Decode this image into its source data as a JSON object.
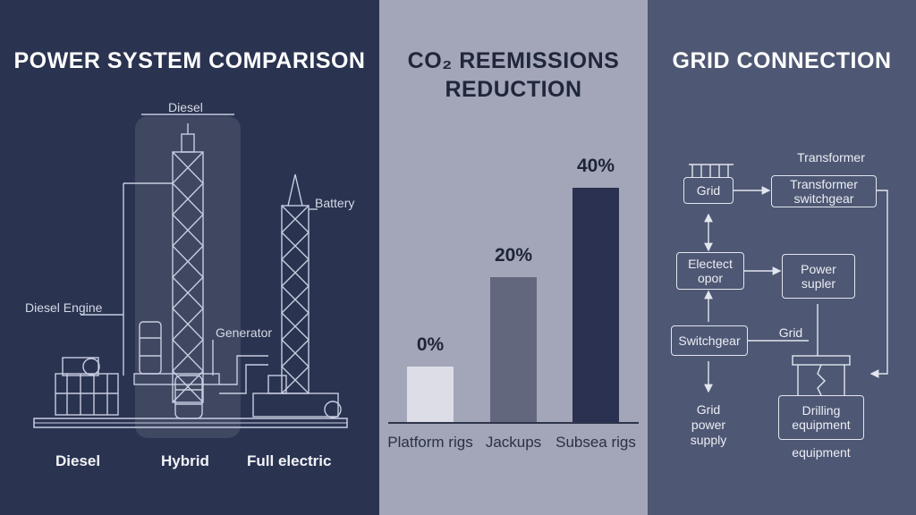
{
  "left": {
    "title": "POWER SYSTEM COMPARISON",
    "labels": {
      "diesel_top": "Diesel",
      "battery": "Battery",
      "diesel_engine": "Diesel Engine",
      "generator": "Generator"
    },
    "columns": [
      "Diesel",
      "Hybrid",
      "Full electric"
    ]
  },
  "middle": {
    "title_line1": "CO₂ REEMISSIONS",
    "title_line2": "REDUCTION",
    "chart_data": {
      "type": "bar",
      "categories": [
        "Platform rigs",
        "Jackups",
        "Subsea rigs"
      ],
      "values": [
        0,
        20,
        40
      ],
      "value_labels": [
        "0%",
        "20%",
        "40%"
      ],
      "colors": [
        "#dcdde6",
        "#63677e",
        "#2b3150"
      ],
      "ylim": [
        0,
        45
      ]
    }
  },
  "right": {
    "title": "GRID CONNECTION",
    "nodes": {
      "grid": "Grid",
      "transformer_switchgear": "Transformer switchgear",
      "electect_opor": "Electect opor",
      "power_supler": "Power supler",
      "switchgear": "Switchgear",
      "drilling_equipment": "Drilling equipment"
    },
    "labels": {
      "transformer": "Transformer",
      "grid_link": "Grid",
      "grid_power_supply": "Grid power supply",
      "equipment": "equipment"
    }
  }
}
